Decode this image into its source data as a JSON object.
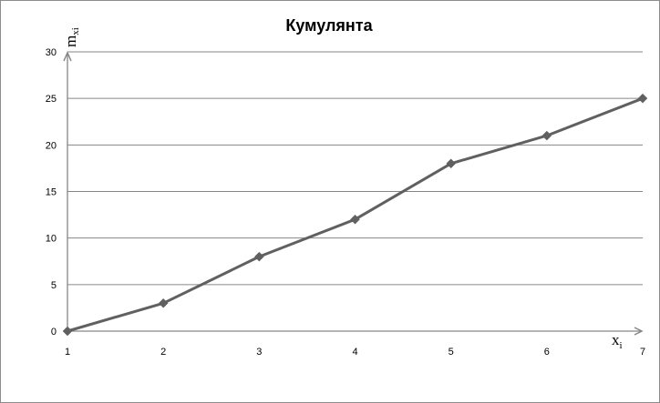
{
  "chart_data": {
    "type": "line",
    "title": "Кумулянта",
    "xlabel": "x",
    "xlabel_sub": "i",
    "ylabel": "m",
    "ylabel_sub": "xi",
    "x": [
      1,
      2,
      3,
      4,
      5,
      6,
      7
    ],
    "series": [
      {
        "values": [
          0,
          3,
          8,
          12,
          18,
          21,
          25
        ]
      }
    ],
    "xlim": [
      1,
      7
    ],
    "ylim": [
      0,
      30
    ],
    "yticks": [
      0,
      5,
      10,
      15,
      20,
      25,
      30
    ],
    "xticks": [
      1,
      2,
      3,
      4,
      5,
      6,
      7
    ],
    "grid": "horizontal",
    "marker": "diamond",
    "colors": {
      "series": "#606060",
      "grid": "#868686",
      "axis": "#868686"
    }
  }
}
